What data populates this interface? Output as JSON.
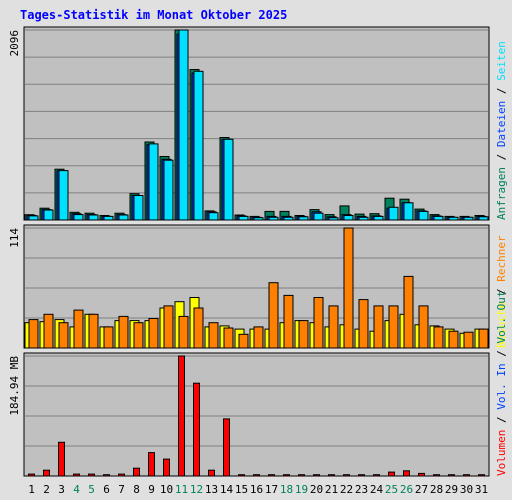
{
  "title": "Tages-Statistik im Monat Oktober 2025",
  "colors": {
    "background": "#e0e0e0",
    "plot_bg": "#c0c0c0",
    "grid": "#808080",
    "title": "#0000ff",
    "anfragen": "#00805c",
    "dateien": "#0040ff",
    "seiten": "#00e0ff",
    "besuche": "#ffff00",
    "rechner": "#ff8000",
    "volumen": "#ff0000",
    "weekend_label": "#00805c"
  },
  "chart_data": [
    {
      "type": "bar",
      "name": "hits",
      "ymax_label": "2096",
      "ylim": [
        0,
        2096
      ],
      "categories": [
        "1",
        "2",
        "3",
        "4",
        "5",
        "6",
        "7",
        "8",
        "9",
        "10",
        "11",
        "12",
        "13",
        "14",
        "15",
        "16",
        "17",
        "18",
        "19",
        "20",
        "21",
        "22",
        "23",
        "24",
        "25",
        "26",
        "27",
        "28",
        "29",
        "30",
        "31"
      ],
      "weekend_days": [
        "4",
        "5",
        "11",
        "12",
        "18",
        "19",
        "25",
        "26"
      ],
      "legend": [
        {
          "label": "Anfragen",
          "color_key": "anfragen"
        },
        {
          "label": "Dateien",
          "color_key": "dateien"
        },
        {
          "label": "Seiten",
          "color_key": "seiten"
        }
      ],
      "series": [
        {
          "key": "anfragen",
          "values": [
            58,
            130,
            560,
            85,
            75,
            50,
            75,
            290,
            860,
            700,
            2096,
            1660,
            100,
            910,
            55,
            40,
            95,
            95,
            50,
            115,
            60,
            155,
            65,
            70,
            240,
            230,
            120,
            60,
            40,
            40,
            50
          ]
        },
        {
          "key": "dateien",
          "values": [
            50,
            115,
            540,
            70,
            60,
            40,
            60,
            270,
            830,
            670,
            2050,
            1620,
            90,
            890,
            45,
            30,
            40,
            40,
            40,
            90,
            35,
            60,
            40,
            45,
            130,
            190,
            100,
            45,
            30,
            30,
            40
          ]
        },
        {
          "key": "seiten",
          "values": [
            45,
            110,
            545,
            60,
            55,
            40,
            55,
            270,
            840,
            660,
            2096,
            1640,
            80,
            890,
            40,
            25,
            30,
            30,
            35,
            75,
            25,
            50,
            30,
            40,
            140,
            190,
            95,
            40,
            30,
            30,
            35
          ]
        }
      ]
    },
    {
      "type": "bar",
      "name": "visits",
      "ymax_label": "114",
      "ylim": [
        0,
        114
      ],
      "legend": [
        {
          "label": "Besuche",
          "color_key": "besuche"
        },
        {
          "label": "Rechner",
          "color_key": "rechner"
        }
      ],
      "series": [
        {
          "key": "besuche",
          "values": [
            24,
            25,
            27,
            20,
            32,
            20,
            26,
            26,
            26,
            38,
            44,
            48,
            20,
            21,
            18,
            18,
            18,
            24,
            26,
            24,
            20,
            22,
            18,
            16,
            26,
            32,
            22,
            21,
            18,
            14,
            18
          ]
        },
        {
          "key": "rechner",
          "values": [
            27,
            32,
            24,
            36,
            32,
            20,
            30,
            24,
            28,
            40,
            30,
            38,
            24,
            19,
            13,
            20,
            62,
            50,
            26,
            48,
            40,
            114,
            46,
            40,
            40,
            68,
            40,
            20,
            16,
            15,
            18
          ]
        }
      ]
    },
    {
      "type": "bar",
      "name": "volume",
      "ymax_label": "184.94 MB",
      "ylim": [
        0,
        184.94
      ],
      "legend": [
        {
          "label": "Volumen",
          "color_key": "volumen"
        },
        {
          "label": "Vol. In",
          "color_key": "dateien"
        },
        {
          "label": "Vol. Out",
          "color_key": "anfragen"
        }
      ],
      "series": [
        {
          "key": "volumen",
          "values": [
            3,
            9,
            52,
            3,
            3,
            2,
            3,
            12,
            36,
            26,
            184.94,
            143,
            9,
            88,
            2,
            2,
            2,
            2,
            2,
            2,
            2,
            2,
            2,
            2,
            6,
            8,
            4,
            2,
            2,
            2,
            2
          ]
        }
      ]
    }
  ]
}
